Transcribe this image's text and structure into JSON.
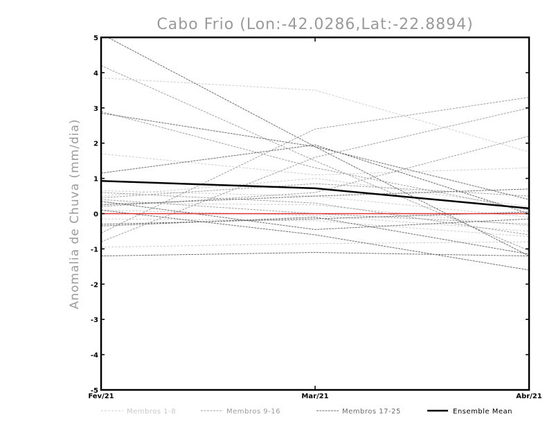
{
  "chart_data": {
    "type": "line",
    "title": "Cabo Frio (Lon:-42.0286,Lat:-22.8894)",
    "ylabel": "Anomalia de Chuva (mm/dia)",
    "xlabel": "",
    "categories": [
      "Fev/21",
      "Mar/21",
      "Abr/21"
    ],
    "ylim": [
      -5,
      5
    ],
    "yticks": [
      -5,
      -4,
      -3,
      -2,
      -1,
      0,
      1,
      2,
      3,
      4,
      5
    ],
    "ytick_labels": [
      "-5",
      "-4",
      "-3",
      "-2",
      "-1",
      "0",
      "1",
      "2",
      "3",
      "4",
      "5"
    ],
    "grid": false,
    "legend_position": "bottom",
    "legend": [
      {
        "label": "Membros 1-8",
        "group": "g1"
      },
      {
        "label": "Membros 9-16",
        "group": "g2"
      },
      {
        "label": "Membros 17-25",
        "group": "g3"
      },
      {
        "label": "Ensemble Mean",
        "group": "mean"
      }
    ],
    "group_colors": {
      "g1": "#cccccc",
      "g2": "#a0a0a0",
      "g3": "#6e6e6e",
      "mean": "#000000"
    },
    "zero_line_color": "#e03030",
    "series": [
      {
        "group": "g1",
        "values": [
          3.85,
          3.5,
          1.75
        ]
      },
      {
        "group": "g1",
        "values": [
          1.7,
          1.1,
          1.3
        ]
      },
      {
        "group": "g1",
        "values": [
          0.65,
          0.5,
          -0.1
        ]
      },
      {
        "group": "g1",
        "values": [
          0.3,
          0.25,
          -0.35
        ]
      },
      {
        "group": "g1",
        "values": [
          -0.15,
          -0.2,
          -0.65
        ]
      },
      {
        "group": "g1",
        "values": [
          -0.95,
          -0.85,
          -0.8
        ]
      },
      {
        "group": "g1",
        "values": [
          0.5,
          1.0,
          0.2
        ]
      },
      {
        "group": "g1",
        "values": [
          0.1,
          -0.05,
          -0.5
        ]
      },
      {
        "group": "g2",
        "values": [
          4.2,
          1.5,
          -1.05
        ]
      },
      {
        "group": "g2",
        "values": [
          2.9,
          1.3,
          0.1
        ]
      },
      {
        "group": "g2",
        "values": [
          -0.55,
          2.4,
          3.3
        ]
      },
      {
        "group": "g2",
        "values": [
          -0.8,
          1.6,
          3.0
        ]
      },
      {
        "group": "g2",
        "values": [
          0.2,
          0.6,
          2.2
        ]
      },
      {
        "group": "g2",
        "values": [
          0.4,
          0.0,
          -0.3
        ]
      },
      {
        "group": "g2",
        "values": [
          0.6,
          0.3,
          -0.6
        ]
      },
      {
        "group": "g2",
        "values": [
          0.45,
          0.85,
          0.5
        ]
      },
      {
        "group": "g3",
        "values": [
          5.1,
          1.9,
          -1.2
        ]
      },
      {
        "group": "g3",
        "values": [
          2.85,
          1.9,
          0.4
        ]
      },
      {
        "group": "g3",
        "values": [
          1.15,
          1.95,
          0.0
        ]
      },
      {
        "group": "g3",
        "values": [
          0.35,
          -0.45,
          -0.15
        ]
      },
      {
        "group": "g3",
        "values": [
          -0.35,
          -0.1,
          -1.15
        ]
      },
      {
        "group": "g3",
        "values": [
          -1.2,
          -1.1,
          -1.2
        ]
      },
      {
        "group": "g3",
        "values": [
          0.1,
          -0.6,
          -1.6
        ]
      },
      {
        "group": "g3",
        "values": [
          0.25,
          0.5,
          0.7
        ]
      },
      {
        "group": "g3",
        "values": [
          -0.3,
          -0.15,
          0.05
        ]
      },
      {
        "group": "mean",
        "name": "Ensemble Mean",
        "values": [
          0.93,
          0.72,
          0.15
        ]
      }
    ]
  }
}
